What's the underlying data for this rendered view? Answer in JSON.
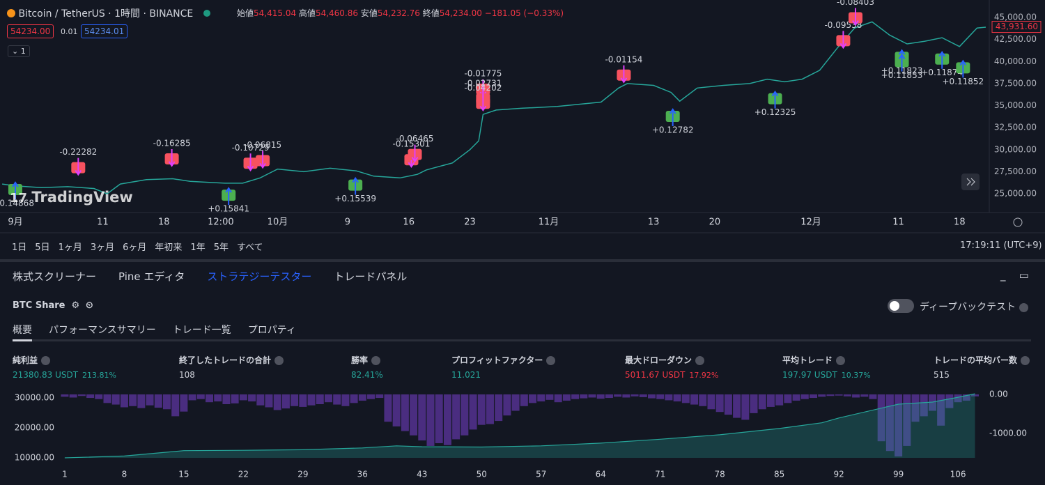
{
  "header": {
    "symbol": "Bitcoin / TetherUS · 1時間 · BINANCE",
    "ohlc": [
      {
        "label": "始値",
        "value": "54,415.04"
      },
      {
        "label": "高値",
        "value": "54,460.86"
      },
      {
        "label": "安値",
        "value": "54,232.76"
      },
      {
        "label": "終値",
        "value": "54,234.00"
      }
    ],
    "change": "−181.05 (−0.33%)"
  },
  "order": {
    "sell": "54234.00",
    "spread": "0.01",
    "buy": "54234.01",
    "interval": "1"
  },
  "watermark": "TradingView",
  "chart_data": [
    {
      "type": "line",
      "color": "#26a69a",
      "x": [
        -1.5,
        0,
        3,
        6,
        9,
        10.5,
        12,
        15,
        18,
        20,
        22,
        24,
        26,
        28,
        30,
        33,
        36,
        39,
        41,
        44,
        46,
        47,
        50,
        52,
        53,
        53.5,
        55,
        58,
        62,
        65,
        67,
        69,
        70,
        73,
        75,
        76,
        78,
        81,
        84,
        86,
        88,
        90,
        92,
        94,
        96,
        98,
        100,
        102,
        104,
        106,
        108,
        110,
        111
      ],
      "values": [
        26100,
        25900,
        25700,
        25800,
        25600,
        25000,
        26100,
        26600,
        26700,
        26400,
        26300,
        26200,
        26200,
        26800,
        27800,
        27500,
        27900,
        27600,
        27000,
        26800,
        27200,
        27700,
        28500,
        30000,
        31000,
        34000,
        34500,
        34700,
        34900,
        35200,
        35400,
        37000,
        37500,
        37300,
        36500,
        35500,
        37000,
        37300,
        37500,
        38000,
        37700,
        38000,
        39000,
        41500,
        43800,
        44500,
        43000,
        42000,
        42300,
        42700,
        41700,
        43800,
        43900
      ],
      "xlim": [
        -1.75,
        111.4
      ],
      "ylim": [
        22870,
        46980
      ],
      "xticks": [
        {
          "value": 0,
          "label": "9月"
        },
        {
          "value": 10,
          "label": "11"
        },
        {
          "value": 17,
          "label": "18"
        },
        {
          "value": 23.5,
          "label": "12:00"
        },
        {
          "value": 30,
          "label": "10月"
        },
        {
          "value": 38,
          "label": "9"
        },
        {
          "value": 45,
          "label": "16"
        },
        {
          "value": 52,
          "label": "23"
        },
        {
          "value": 61,
          "label": "11月"
        },
        {
          "value": 73,
          "label": "13"
        },
        {
          "value": 80,
          "label": "20"
        },
        {
          "value": 91,
          "label": "12月"
        },
        {
          "value": 101,
          "label": "11"
        },
        {
          "value": 108,
          "label": "18"
        }
      ],
      "yticks": [
        {
          "value": 45000,
          "label": "45,000.00"
        },
        {
          "value": 42500,
          "label": "42,500.00"
        },
        {
          "value": 40000,
          "label": "40,000.00"
        },
        {
          "value": 37500,
          "label": "37,500.00"
        },
        {
          "value": 35000,
          "label": "35,000.00"
        },
        {
          "value": 32500,
          "label": "32,500.00"
        },
        {
          "value": 30000,
          "label": "30,000.00"
        },
        {
          "value": 27500,
          "label": "27,500.00"
        },
        {
          "value": 25000,
          "label": "25,000.00"
        }
      ],
      "last_price": {
        "value": 43931.6,
        "label": "43,931.60"
      },
      "annotations": [
        {
          "text": "-0.14868",
          "x": 0,
          "y": 23900,
          "marker": "buy"
        },
        {
          "text": "-0.22282",
          "x": 7.2,
          "y": 29700,
          "marker": "sell"
        },
        {
          "text": "+0.15841",
          "x": 24.4,
          "y": 23260,
          "marker": "buy"
        },
        {
          "text": "-0.16285",
          "x": 17.9,
          "y": 30700,
          "marker": "sell"
        },
        {
          "text": "-0.10729",
          "x": 26.9,
          "y": 30200,
          "marker": "sell"
        },
        {
          "text": "-0.06815",
          "x": 28.3,
          "y": 30500,
          "marker": "sell"
        },
        {
          "text": "+0.15539",
          "x": 38.9,
          "y": 24400,
          "marker": "buy"
        },
        {
          "text": "-0.15301",
          "x": 45.3,
          "y": 30600,
          "marker": "sell"
        },
        {
          "text": "-0.06465",
          "x": 45.7,
          "y": 31200,
          "marker": "sell"
        },
        {
          "text": "-0.01775",
          "x": 53.5,
          "y": 38600,
          "marker": "sell"
        },
        {
          "text": "-0.02731",
          "x": 53.5,
          "y": 37500,
          "marker": "sell"
        },
        {
          "text": "-0.04202",
          "x": 53.5,
          "y": 37000,
          "marker": "sell"
        },
        {
          "text": "-0.01154",
          "x": 69.6,
          "y": 40200,
          "marker": "sell"
        },
        {
          "text": "+0.12782",
          "x": 75.2,
          "y": 32200,
          "marker": "buy"
        },
        {
          "text": "+0.12325",
          "x": 86.9,
          "y": 34200,
          "marker": "buy"
        },
        {
          "text": "-0.09538",
          "x": 94.7,
          "y": 44100,
          "marker": "sell"
        },
        {
          "text": "-0.08403",
          "x": 96.1,
          "y": 46700,
          "marker": "sell"
        },
        {
          "text": "+0.11823",
          "x": 101.4,
          "y": 38900,
          "marker": "buy"
        },
        {
          "text": "+0.11853",
          "x": 101.4,
          "y": 38400,
          "marker": "buy"
        },
        {
          "text": "+0.11874",
          "x": 106,
          "y": 38700,
          "marker": "buy"
        },
        {
          "text": "+0.11852",
          "x": 108.4,
          "y": 37700,
          "marker": "buy"
        }
      ]
    },
    {
      "type": "equity",
      "color": "#26a69a",
      "x": [
        1,
        8,
        15,
        22,
        29,
        36,
        40,
        43,
        50,
        57,
        64,
        71,
        78,
        85,
        90,
        92,
        99,
        103,
        106,
        108
      ],
      "values": [
        10000,
        10600,
        12400,
        12500,
        12700,
        13300,
        14000,
        13700,
        13600,
        14000,
        14900,
        16200,
        17700,
        19800,
        21700,
        23300,
        27900,
        28600,
        30200,
        31380
      ],
      "xlim": [
        -0.06,
        108.45
      ],
      "ylim": [
        10000,
        31160
      ],
      "y2lim": [
        -1625,
        0
      ],
      "xticks": [
        1,
        8,
        15,
        22,
        29,
        36,
        43,
        50,
        57,
        64,
        71,
        78,
        85,
        92,
        99,
        106
      ],
      "yticks": [
        {
          "value": 30000,
          "label": "30000.00"
        },
        {
          "value": 20000,
          "label": "20000.00"
        },
        {
          "value": 10000,
          "label": "10000.00"
        }
      ],
      "y2ticks": [
        {
          "value": 0,
          "label": "0.00"
        },
        {
          "value": -1000,
          "label": "-1000.00"
        }
      ],
      "bars": {
        "color": "#4a2d80",
        "axis": "y2",
        "x": [
          1,
          2,
          3,
          4,
          5,
          6,
          7,
          8,
          9,
          10,
          11,
          12,
          13,
          14,
          15,
          16,
          17,
          18,
          19,
          20,
          21,
          22,
          23,
          24,
          25,
          26,
          27,
          28,
          29,
          30,
          31,
          32,
          33,
          34,
          35,
          36,
          37,
          38,
          39,
          40,
          41,
          42,
          43,
          44,
          45,
          46,
          47,
          48,
          49,
          50,
          51,
          52,
          53,
          54,
          55,
          56,
          57,
          58,
          59,
          60,
          61,
          62,
          63,
          64,
          65,
          66,
          67,
          68,
          69,
          70,
          71,
          72,
          73,
          74,
          75,
          76,
          77,
          78,
          79,
          80,
          81,
          82,
          83,
          84,
          85,
          86,
          87,
          88,
          89,
          90,
          91,
          92,
          93,
          94,
          95,
          96,
          97,
          98,
          99,
          100,
          101,
          102,
          103,
          104,
          105,
          106,
          107,
          108
        ],
        "values": [
          -60,
          -80,
          -40,
          -90,
          -120,
          -220,
          -260,
          -330,
          -300,
          -350,
          -280,
          -340,
          -380,
          -560,
          -440,
          -150,
          -120,
          -200,
          -180,
          -250,
          -230,
          -150,
          -180,
          -280,
          -330,
          -400,
          -360,
          -300,
          -320,
          -280,
          -250,
          -200,
          -260,
          -300,
          -220,
          -160,
          -120,
          -90,
          -700,
          -820,
          -940,
          -1050,
          -1180,
          -1320,
          -1250,
          -1300,
          -1150,
          -1050,
          -900,
          -780,
          -760,
          -680,
          -540,
          -420,
          -300,
          -220,
          -180,
          -140,
          -200,
          -160,
          -120,
          -100,
          -80,
          -110,
          -90,
          -60,
          -80,
          -50,
          -70,
          -100,
          -120,
          -150,
          -180,
          -220,
          -260,
          -300,
          -380,
          -450,
          -520,
          -600,
          -650,
          -480,
          -380,
          -320,
          -280,
          -220,
          -160,
          -120,
          -90,
          -60,
          -40,
          -30,
          -50,
          -80,
          -60,
          -120,
          -1200,
          -1450,
          -1590,
          -1320,
          -700,
          -560,
          -420,
          -800,
          -350,
          -200,
          -160,
          -50
        ]
      }
    }
  ],
  "range_buttons": [
    "1日",
    "5日",
    "1ヶ月",
    "3ヶ月",
    "6ヶ月",
    "年初来",
    "1年",
    "5年",
    "すべて"
  ],
  "clock": "17:19:11 (UTC+9)",
  "panel_tabs": [
    "株式スクリーナー",
    "Pine エディタ",
    "ストラテジーテスター",
    "トレードパネル"
  ],
  "strategy": {
    "name": "BTC Share",
    "deep_backtest": "ディープバックテスト",
    "tabs": [
      "概要",
      "パフォーマンスサマリー",
      "トレード一覧",
      "プロパティ"
    ],
    "metrics": [
      {
        "label": "純利益",
        "value": "21380.83 USDT",
        "pct": "213.81%"
      },
      {
        "label": "終了したトレードの合計",
        "value": "108"
      },
      {
        "label": "勝率",
        "value": "82.41%"
      },
      {
        "label": "プロフィットファクター",
        "value": "11.021"
      },
      {
        "label": "最大ドローダウン",
        "value": "5011.67 USDT",
        "pct": "17.92%"
      },
      {
        "label": "平均トレード",
        "value": "197.97 USDT",
        "pct": "10.37%"
      },
      {
        "label": "トレードの平均バー数",
        "value": "515"
      }
    ]
  }
}
